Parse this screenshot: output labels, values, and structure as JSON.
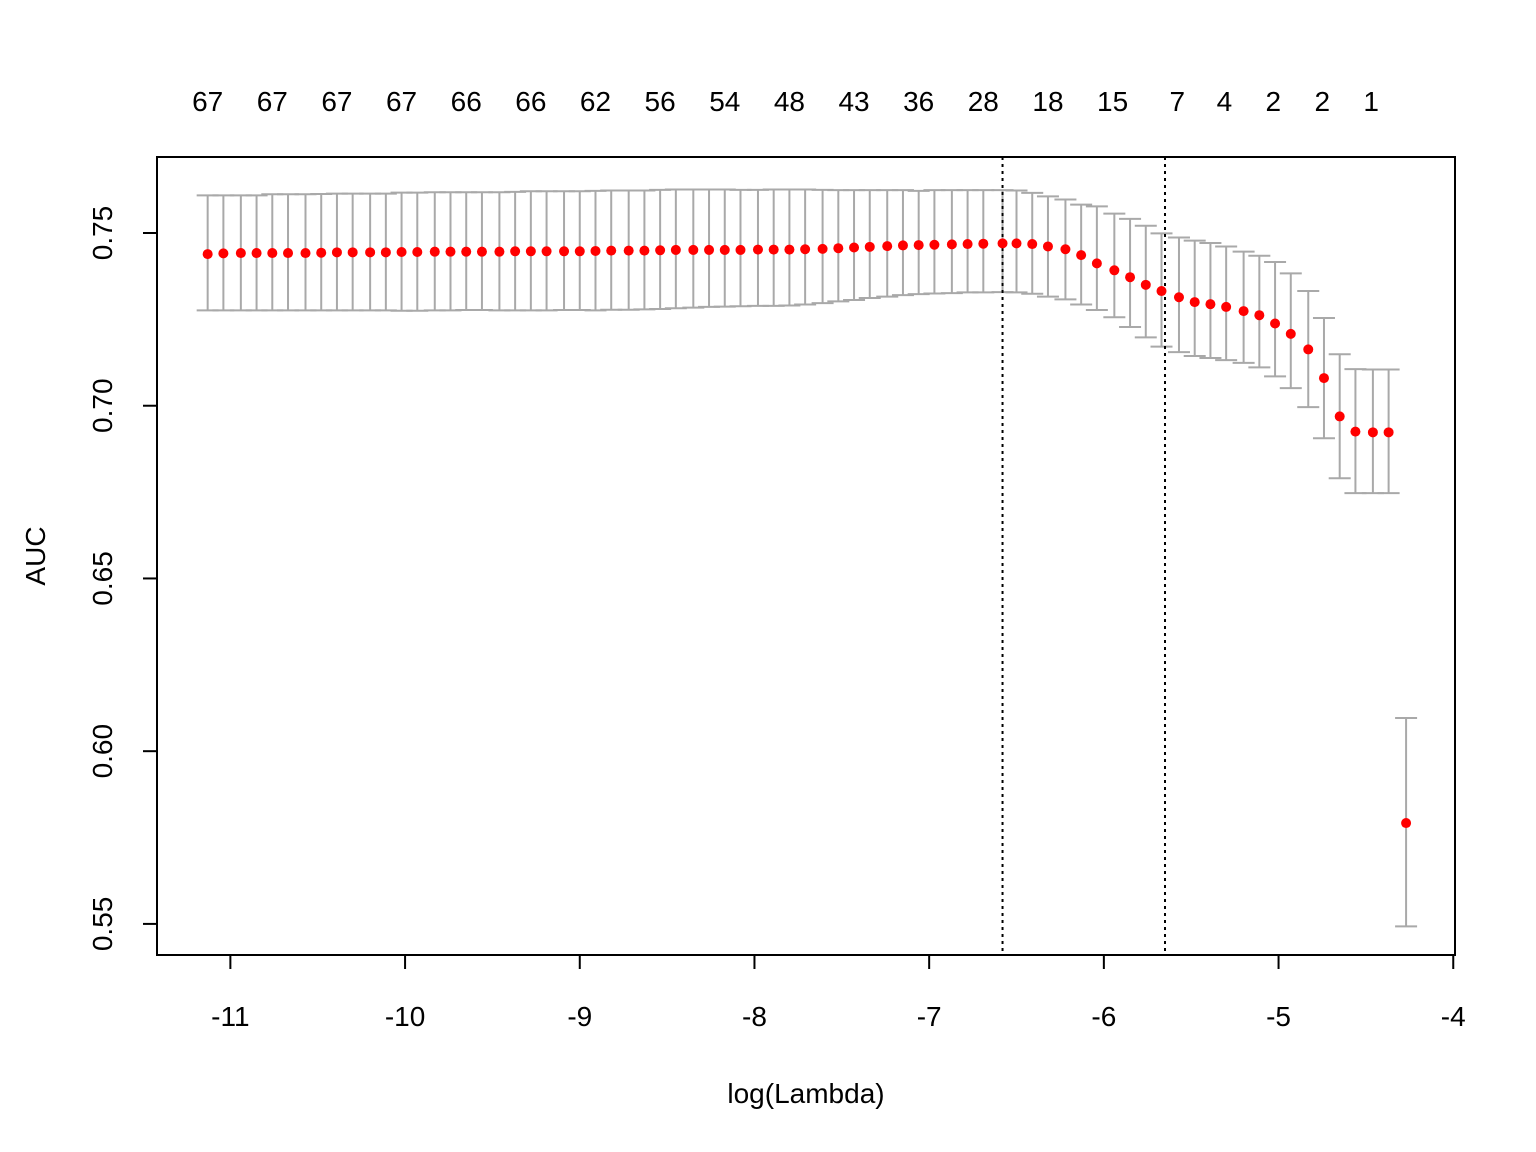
{
  "chart_data": {
    "type": "scatter",
    "title": "",
    "xlabel": "log(Lambda)",
    "ylabel": "AUC",
    "xlim": [
      -11.42,
      -3.99
    ],
    "ylim": [
      0.541,
      0.772
    ],
    "x_ticks": [
      -11,
      -10,
      -9,
      -8,
      -7,
      -6,
      -5,
      -4
    ],
    "x_tick_labels": [
      "-11",
      "-10",
      "-9",
      "-8",
      "-7",
      "-6",
      "-5",
      "-4"
    ],
    "y_ticks": [
      0.55,
      0.6,
      0.65,
      0.7,
      0.75
    ],
    "y_tick_labels": [
      "0.55",
      "0.60",
      "0.65",
      "0.70",
      "0.75"
    ],
    "top_axis": {
      "x": [
        -11.13,
        -10.76,
        -10.39,
        -10.02,
        -9.65,
        -9.28,
        -8.91,
        -8.54,
        -8.17,
        -7.8,
        -7.43,
        -7.06,
        -6.69,
        -6.32,
        -5.95,
        -5.58,
        -5.31,
        -5.03,
        -4.75,
        -4.47
      ],
      "labels": [
        "67",
        "67",
        "67",
        "67",
        "66",
        "66",
        "62",
        "56",
        "54",
        "48",
        "43",
        "36",
        "28",
        "18",
        "15",
        "7",
        "4",
        "2",
        "2",
        "1"
      ]
    },
    "vlines": [
      -6.58,
      -5.65
    ],
    "points": {
      "x": [
        -11.13,
        -11.04,
        -10.94,
        -10.85,
        -10.76,
        -10.67,
        -10.57,
        -10.48,
        -10.39,
        -10.3,
        -10.2,
        -10.11,
        -10.02,
        -9.93,
        -9.83,
        -9.74,
        -9.65,
        -9.56,
        -9.46,
        -9.37,
        -9.28,
        -9.19,
        -9.09,
        -9.0,
        -8.91,
        -8.82,
        -8.72,
        -8.63,
        -8.54,
        -8.45,
        -8.35,
        -8.26,
        -8.17,
        -8.08,
        -7.98,
        -7.89,
        -7.8,
        -7.71,
        -7.61,
        -7.52,
        -7.43,
        -7.34,
        -7.24,
        -7.15,
        -7.06,
        -6.97,
        -6.87,
        -6.78,
        -6.69,
        -6.58,
        -6.5,
        -6.41,
        -6.32,
        -6.22,
        -6.13,
        -6.04,
        -5.94,
        -5.85,
        -5.76,
        -5.67,
        -5.57,
        -5.48,
        -5.39,
        -5.3,
        -5.2,
        -5.11,
        -5.02,
        -4.93,
        -4.83,
        -4.74,
        -4.65,
        -4.56,
        -4.46,
        -4.37,
        -4.27
      ],
      "y": [
        0.7439,
        0.7441,
        0.7442,
        0.7442,
        0.7442,
        0.7442,
        0.7442,
        0.7443,
        0.7444,
        0.7444,
        0.7444,
        0.7444,
        0.7445,
        0.7445,
        0.7446,
        0.7446,
        0.7446,
        0.7446,
        0.7446,
        0.7447,
        0.7447,
        0.7447,
        0.7447,
        0.7447,
        0.7448,
        0.7449,
        0.7449,
        0.7449,
        0.745,
        0.7451,
        0.7451,
        0.7451,
        0.7451,
        0.7451,
        0.7452,
        0.7452,
        0.7452,
        0.7453,
        0.7454,
        0.7456,
        0.7458,
        0.746,
        0.7462,
        0.7464,
        0.7465,
        0.7466,
        0.7467,
        0.7468,
        0.7469,
        0.747,
        0.747,
        0.7468,
        0.7461,
        0.7453,
        0.7436,
        0.7412,
        0.7392,
        0.7372,
        0.735,
        0.7332,
        0.7314,
        0.73,
        0.7294,
        0.7286,
        0.7274,
        0.7262,
        0.7238,
        0.7208,
        0.7163,
        0.708,
        0.6969,
        0.6925,
        0.6923,
        0.6923,
        0.5792
      ],
      "upper": [
        0.7609,
        0.7609,
        0.7609,
        0.7609,
        0.7612,
        0.7612,
        0.7612,
        0.7613,
        0.7614,
        0.7614,
        0.7614,
        0.7614,
        0.7617,
        0.7617,
        0.7618,
        0.7618,
        0.7618,
        0.7618,
        0.7618,
        0.7619,
        0.7621,
        0.7621,
        0.7621,
        0.7621,
        0.7622,
        0.7623,
        0.7623,
        0.7623,
        0.7625,
        0.7626,
        0.7626,
        0.7626,
        0.7626,
        0.7625,
        0.7625,
        0.7626,
        0.7626,
        0.7626,
        0.7625,
        0.7624,
        0.7624,
        0.7624,
        0.7624,
        0.7624,
        0.7622,
        0.7624,
        0.7624,
        0.7624,
        0.7624,
        0.7624,
        0.7623,
        0.7616,
        0.7606,
        0.7597,
        0.7582,
        0.7577,
        0.7556,
        0.7541,
        0.7521,
        0.7499,
        0.7487,
        0.7478,
        0.7471,
        0.7461,
        0.7446,
        0.7434,
        0.7416,
        0.7383,
        0.7332,
        0.7254,
        0.7149,
        0.7106,
        0.7105,
        0.7105,
        0.6096
      ],
      "lower": [
        0.7276,
        0.7276,
        0.7276,
        0.7276,
        0.7276,
        0.7276,
        0.7276,
        0.7276,
        0.7276,
        0.7276,
        0.7276,
        0.7276,
        0.7275,
        0.7275,
        0.7276,
        0.7276,
        0.7277,
        0.7277,
        0.7276,
        0.7276,
        0.7276,
        0.7276,
        0.7277,
        0.7277,
        0.7276,
        0.7278,
        0.7278,
        0.7279,
        0.728,
        0.7282,
        0.7284,
        0.7286,
        0.7287,
        0.7288,
        0.7289,
        0.7289,
        0.729,
        0.7293,
        0.7297,
        0.7302,
        0.7306,
        0.7312,
        0.7316,
        0.732,
        0.7323,
        0.7325,
        0.7326,
        0.7328,
        0.7328,
        0.7329,
        0.7328,
        0.7324,
        0.7316,
        0.7308,
        0.7293,
        0.7277,
        0.7256,
        0.7228,
        0.7198,
        0.7171,
        0.7155,
        0.7144,
        0.7138,
        0.7132,
        0.7124,
        0.7111,
        0.7085,
        0.7051,
        0.6996,
        0.6906,
        0.679,
        0.6747,
        0.6747,
        0.6747,
        0.5493
      ]
    },
    "point_color": "#ff0000",
    "errorbar_color": "#a9a9a9",
    "grid": false,
    "legend": "none"
  }
}
